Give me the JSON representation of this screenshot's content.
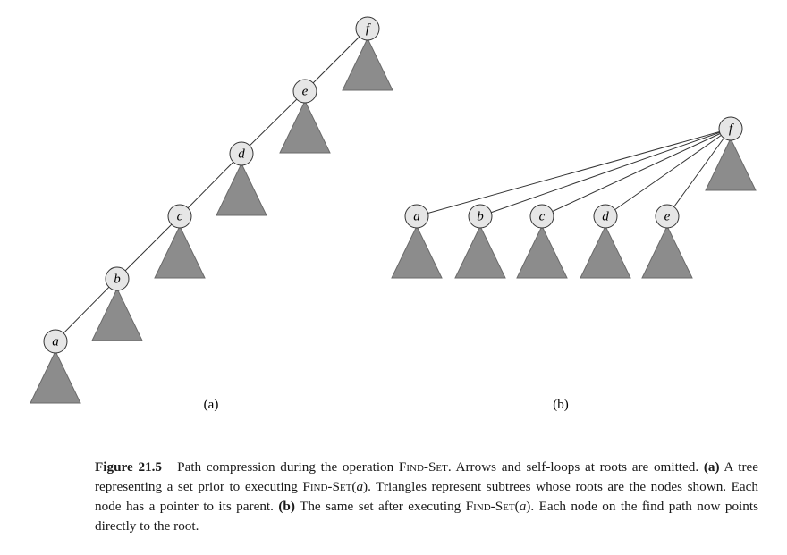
{
  "panel_a": {
    "label": "(a)",
    "nodes": [
      {
        "id": "f",
        "label": "f"
      },
      {
        "id": "e",
        "label": "e"
      },
      {
        "id": "d",
        "label": "d"
      },
      {
        "id": "c",
        "label": "c"
      },
      {
        "id": "b",
        "label": "b"
      },
      {
        "id": "a",
        "label": "a"
      }
    ],
    "edges": [
      [
        "a",
        "b"
      ],
      [
        "b",
        "c"
      ],
      [
        "c",
        "d"
      ],
      [
        "d",
        "e"
      ],
      [
        "e",
        "f"
      ]
    ]
  },
  "panel_b": {
    "label": "(b)",
    "root": {
      "id": "f",
      "label": "f"
    },
    "children": [
      {
        "id": "a",
        "label": "a"
      },
      {
        "id": "b",
        "label": "b"
      },
      {
        "id": "c",
        "label": "c"
      },
      {
        "id": "d",
        "label": "d"
      },
      {
        "id": "e",
        "label": "e"
      }
    ]
  },
  "colors": {
    "node_fill": "#e6e6e6",
    "subtree_fill": "#8c8c8c",
    "line": "#333333"
  },
  "caption": {
    "figure_label": "Figure 21.5",
    "t1": "Path compression during the operation ",
    "find_set": "Find-Set",
    "t2": ". Arrows and self-loops at roots are omitted. ",
    "a_label": "(a)",
    "t3": " A tree representing a set prior to executing ",
    "paren_open": "(",
    "arg": "a",
    "paren_close": ")",
    "t4": ". Triangles represent subtrees whose roots are the nodes shown. Each node has a pointer to its parent. ",
    "b_label": "(b)",
    "t5": " The same set after executing ",
    "t6": ". Each node on the find path now points directly to the root."
  }
}
